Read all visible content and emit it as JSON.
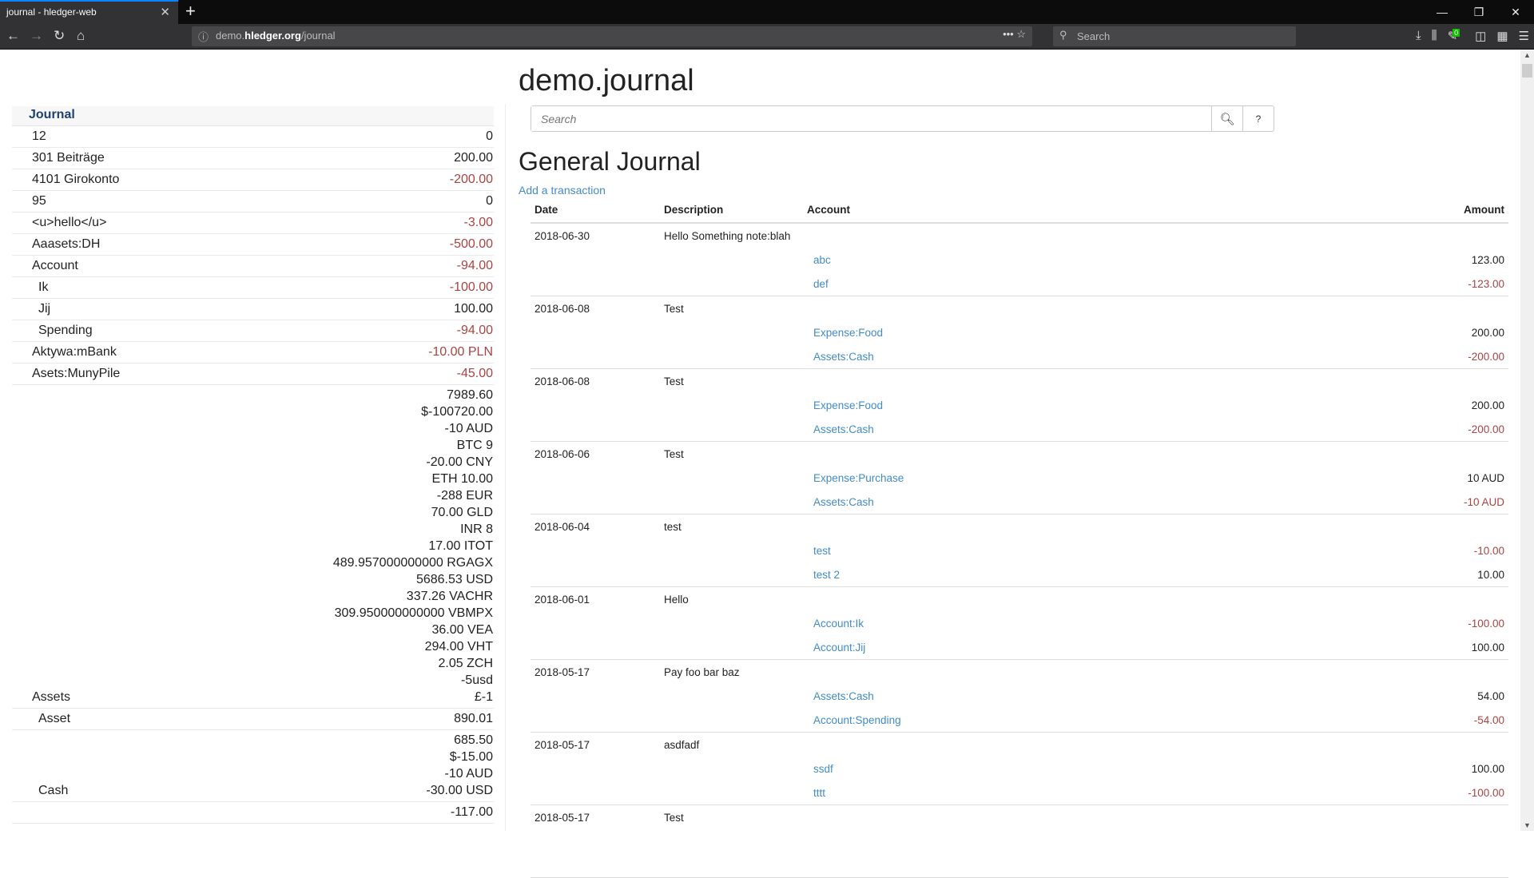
{
  "browser": {
    "tab_title": "journal - hledger-web",
    "url_host_pre": "demo.",
    "url_host": "hledger.org",
    "url_path": "/journal",
    "search_placeholder": "Search",
    "badge_count": "0"
  },
  "sidebar": {
    "header": "Journal",
    "rows": [
      {
        "name": "12",
        "indent": 0,
        "amounts": [
          "0"
        ],
        "negative": false
      },
      {
        "name": "301 Beiträge",
        "indent": 0,
        "amounts": [
          "200.00"
        ],
        "negative": false
      },
      {
        "name": "4101 Girokonto",
        "indent": 0,
        "amounts": [
          "-200.00"
        ],
        "negative": true
      },
      {
        "name": "95",
        "indent": 0,
        "amounts": [
          "0"
        ],
        "negative": false
      },
      {
        "name": "<u>hello</u>",
        "indent": 0,
        "amounts": [
          "-3.00"
        ],
        "negative": true
      },
      {
        "name": "Aaasets:DH",
        "indent": 0,
        "amounts": [
          "-500.00"
        ],
        "negative": true
      },
      {
        "name": "Account",
        "indent": 0,
        "amounts": [
          "-94.00"
        ],
        "negative": true
      },
      {
        "name": "Ik",
        "indent": 1,
        "amounts": [
          "-100.00"
        ],
        "negative": true
      },
      {
        "name": "Jij",
        "indent": 1,
        "amounts": [
          "100.00"
        ],
        "negative": false
      },
      {
        "name": "Spending",
        "indent": 1,
        "amounts": [
          "-94.00"
        ],
        "negative": true
      },
      {
        "name": "Aktywa:mBank",
        "indent": 0,
        "amounts": [
          "-10.00 PLN"
        ],
        "negative": true
      },
      {
        "name": "Asets:MunyPile",
        "indent": 0,
        "amounts": [
          "-45.00"
        ],
        "negative": true
      },
      {
        "name": "Assets",
        "indent": 0,
        "amounts": [
          "7989.60",
          "$-100720.00",
          "-10 AUD",
          "BTC 9",
          "-20.00 CNY",
          "ETH 10.00",
          "-288 EUR",
          "70.00 GLD",
          "INR 8",
          "17.00 ITOT",
          "489.957000000000 RGAGX",
          "5686.53 USD",
          "337.26 VACHR",
          "309.950000000000 VBMPX",
          "36.00 VEA",
          "294.00 VHT",
          "2.05 ZCH",
          "-5usd",
          "£-1"
        ],
        "negative": false
      },
      {
        "name": "Asset",
        "indent": 1,
        "amounts": [
          "890.01"
        ],
        "negative": false
      },
      {
        "name": "Cash",
        "indent": 1,
        "amounts": [
          "685.50",
          "$-15.00",
          "-10 AUD",
          "-30.00 USD"
        ],
        "negative": false
      },
      {
        "name": "",
        "indent": 1,
        "amounts": [
          "-117.00"
        ],
        "negative": false
      }
    ]
  },
  "main": {
    "title": "demo.journal",
    "search_placeholder": "Search",
    "help_label": "?",
    "heading": "General Journal",
    "add_link": "Add a transaction",
    "columns": [
      "Date",
      "Description",
      "Account",
      "Amount"
    ],
    "transactions": [
      {
        "date": "2018-06-30",
        "desc": "Hello Something note:blah",
        "postings": [
          {
            "account": "abc",
            "amount": "123.00",
            "neg": false
          },
          {
            "account": "def",
            "amount": "-123.00",
            "neg": true
          }
        ]
      },
      {
        "date": "2018-06-08",
        "desc": "Test",
        "postings": [
          {
            "account": "Expense:Food",
            "amount": "200.00",
            "neg": false
          },
          {
            "account": "Assets:Cash",
            "amount": "-200.00",
            "neg": true
          }
        ]
      },
      {
        "date": "2018-06-08",
        "desc": "Test",
        "postings": [
          {
            "account": "Expense:Food",
            "amount": "200.00",
            "neg": false
          },
          {
            "account": "Assets:Cash",
            "amount": "-200.00",
            "neg": true
          }
        ]
      },
      {
        "date": "2018-06-06",
        "desc": "Test",
        "postings": [
          {
            "account": "Expense:Purchase",
            "amount": "10 AUD",
            "neg": false
          },
          {
            "account": "Assets:Cash",
            "amount": "-10 AUD",
            "neg": true
          }
        ]
      },
      {
        "date": "2018-06-04",
        "desc": "test",
        "postings": [
          {
            "account": "test",
            "amount": "-10.00",
            "neg": true
          },
          {
            "account": "test 2",
            "amount": "10.00",
            "neg": false
          }
        ]
      },
      {
        "date": "2018-06-01",
        "desc": "Hello",
        "postings": [
          {
            "account": "Account:Ik",
            "amount": "-100.00",
            "neg": true
          },
          {
            "account": "Account:Jij",
            "amount": "100.00",
            "neg": false
          }
        ]
      },
      {
        "date": "2018-05-17",
        "desc": "Pay foo bar baz",
        "postings": [
          {
            "account": "Assets:Cash",
            "amount": "54.00",
            "neg": false
          },
          {
            "account": "Account:Spending",
            "amount": "-54.00",
            "neg": true
          }
        ]
      },
      {
        "date": "2018-05-17",
        "desc": "asdfadf",
        "postings": [
          {
            "account": "ssdf",
            "amount": "100.00",
            "neg": false
          },
          {
            "account": "tttt",
            "amount": "-100.00",
            "neg": true
          }
        ]
      },
      {
        "date": "2018-05-17",
        "desc": "Test",
        "postings": []
      }
    ]
  },
  "colors": {
    "negative": "#a94442",
    "link": "#428bca",
    "sidebar_header": "#1d3f72"
  }
}
